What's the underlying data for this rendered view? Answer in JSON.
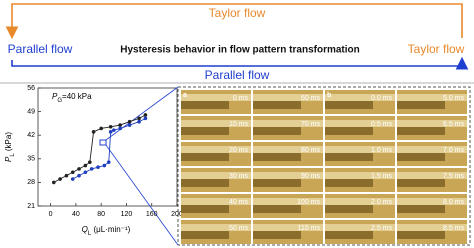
{
  "diagram": {
    "top_label": "Taylor flow",
    "left_label": "Parallel flow",
    "title": "Hysteresis behavior in flow pattern transformation",
    "right_label": "Taylor flow",
    "bottom_label": "Parallel flow"
  },
  "chart_data": {
    "type": "line",
    "annotation": [
      "P",
      "G",
      "=40 kPa"
    ],
    "x_label": [
      "Q",
      "L",
      " (μL·min⁻¹)"
    ],
    "y_label": [
      "P",
      "L",
      " (kPa)"
    ],
    "xlim": [
      -20,
      200
    ],
    "xticks": [
      0,
      40,
      80,
      120,
      160,
      200
    ],
    "ylim": [
      21,
      56
    ],
    "yticks": [
      21,
      28,
      35,
      42,
      49,
      56
    ],
    "series": [
      {
        "color": "#222222",
        "x": [
          5,
          15,
          25,
          35,
          45,
          55,
          62,
          68,
          80,
          95,
          110,
          125,
          140,
          150
        ],
        "values": [
          28,
          29,
          30,
          31,
          32,
          33,
          34,
          43,
          44,
          44.5,
          45,
          46,
          47,
          48
        ]
      },
      {
        "color": "#1f3fbf",
        "x": [
          150,
          140,
          125,
          110,
          100,
          95,
          92,
          85,
          75,
          65,
          55,
          45,
          35
        ],
        "values": [
          47,
          46,
          45,
          44,
          43.5,
          43,
          34,
          33,
          32.5,
          32,
          31,
          30,
          29
        ]
      }
    ]
  },
  "micrographs": {
    "panel_labels": [
      "a",
      "b"
    ],
    "columns": [
      [
        "0 ms",
        "10 ms",
        "20 ms",
        "30 ms",
        "40 ms",
        "50 ms"
      ],
      [
        "60 ms",
        "70 ms",
        "80 ms",
        "90 ms",
        "100 ms",
        "110 ms"
      ],
      [
        "0.0 ms",
        "0.5 ms",
        "1.0 ms",
        "1.5 ms",
        "2.0 ms",
        "2.5 ms"
      ],
      [
        "5.0 ms",
        "6.5 ms",
        "7.0 ms",
        "7.5 ms",
        "8.0 ms",
        "8.5 ms"
      ]
    ]
  }
}
